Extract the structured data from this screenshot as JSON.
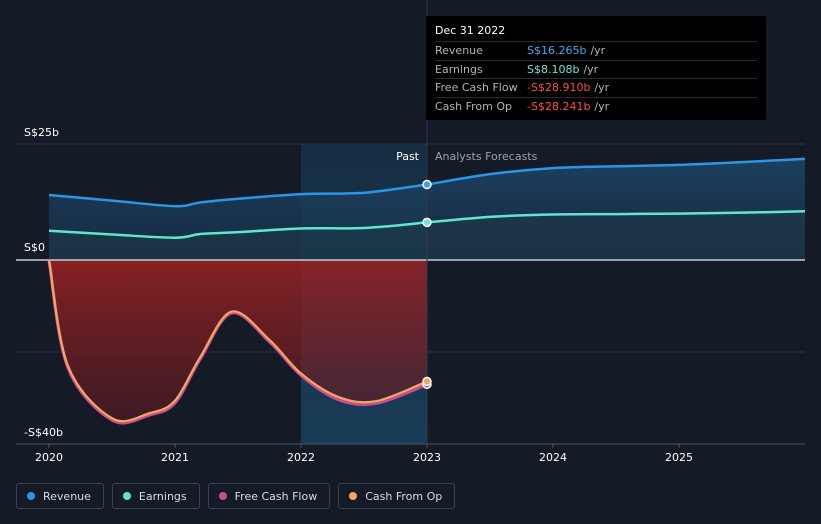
{
  "tooltip": {
    "date": "Dec 31 2022",
    "rows": [
      {
        "label": "Revenue",
        "value": "S$16.265b",
        "unit": "/yr",
        "color": "#3fa9f5"
      },
      {
        "label": "Earnings",
        "value": "S$8.108b",
        "unit": "/yr",
        "color": "#6ee7d6"
      },
      {
        "label": "Free Cash Flow",
        "value": "-S$28.910b",
        "unit": "/yr",
        "color": "#ff4d4d"
      },
      {
        "label": "Cash From Op",
        "value": "-S$28.241b",
        "unit": "/yr",
        "color": "#ff4d4d"
      }
    ]
  },
  "legend": [
    {
      "label": "Revenue",
      "color": "#2b95e6"
    },
    {
      "label": "Earnings",
      "color": "#5ee7d0"
    },
    {
      "label": "Free Cash Flow",
      "color": "#c84d8c"
    },
    {
      "label": "Cash From Op",
      "color": "#f0a860"
    }
  ],
  "chart_data": {
    "type": "line",
    "ylim": [
      -40,
      25
    ],
    "ytick_labels": [
      "S$25b",
      "S$0",
      "-S$40b"
    ],
    "xtick_labels": [
      "2020",
      "2021",
      "2022",
      "2023",
      "2024",
      "2025"
    ],
    "past_label": "Past",
    "forecast_label": "Analysts Forecasts",
    "colors": {
      "revenue": "#2b95e6",
      "earnings": "#5ee7d0",
      "fcf": "#c84d8c",
      "cfo": "#f0a860"
    },
    "series": [
      {
        "name": "Revenue",
        "key": "revenue",
        "x": [
          2020.0,
          2020.5,
          2021.0,
          2021.2,
          2021.5,
          2022.0,
          2022.5,
          2023.0
        ],
        "values": [
          14.0,
          12.8,
          11.6,
          12.4,
          13.2,
          14.2,
          14.5,
          16.265
        ]
      },
      {
        "name": "Revenue",
        "key": "revenue_forecast",
        "x": [
          2023.0,
          2023.5,
          2024.0,
          2024.5,
          2025.0,
          2025.5,
          2026.0
        ],
        "values": [
          16.265,
          18.5,
          19.8,
          20.2,
          20.5,
          21.1,
          21.8
        ]
      },
      {
        "name": "Earnings",
        "key": "earnings",
        "x": [
          2020.0,
          2020.5,
          2021.0,
          2021.2,
          2021.5,
          2022.0,
          2022.5,
          2023.0
        ],
        "values": [
          6.3,
          5.5,
          4.8,
          5.6,
          6.0,
          6.8,
          6.9,
          8.108
        ]
      },
      {
        "name": "Earnings",
        "key": "earnings_forecast",
        "x": [
          2023.0,
          2023.5,
          2024.0,
          2024.5,
          2025.0,
          2025.5,
          2026.0
        ],
        "values": [
          8.108,
          9.3,
          9.8,
          9.9,
          10.0,
          10.2,
          10.5
        ]
      },
      {
        "name": "Free Cash Flow",
        "key": "fcf",
        "x": [
          2020.0,
          2020.15,
          2020.5,
          2020.8,
          2021.0,
          2021.2,
          2021.45,
          2021.75,
          2022.0,
          2022.3,
          2022.6,
          2023.0
        ],
        "values": [
          0.0,
          -25.0,
          -37.2,
          -36.0,
          -33.2,
          -23.0,
          -12.3,
          -19.0,
          -26.8,
          -32.5,
          -33.3,
          -28.91
        ]
      },
      {
        "name": "Cash From Op",
        "key": "cfo",
        "x": [
          2020.0,
          2020.15,
          2020.5,
          2020.8,
          2021.0,
          2021.2,
          2021.45,
          2021.75,
          2022.0,
          2022.3,
          2022.6,
          2023.0
        ],
        "values": [
          0.0,
          -24.6,
          -36.8,
          -35.6,
          -32.7,
          -22.6,
          -12.0,
          -18.6,
          -26.4,
          -31.9,
          -32.8,
          -28.241
        ]
      }
    ]
  }
}
